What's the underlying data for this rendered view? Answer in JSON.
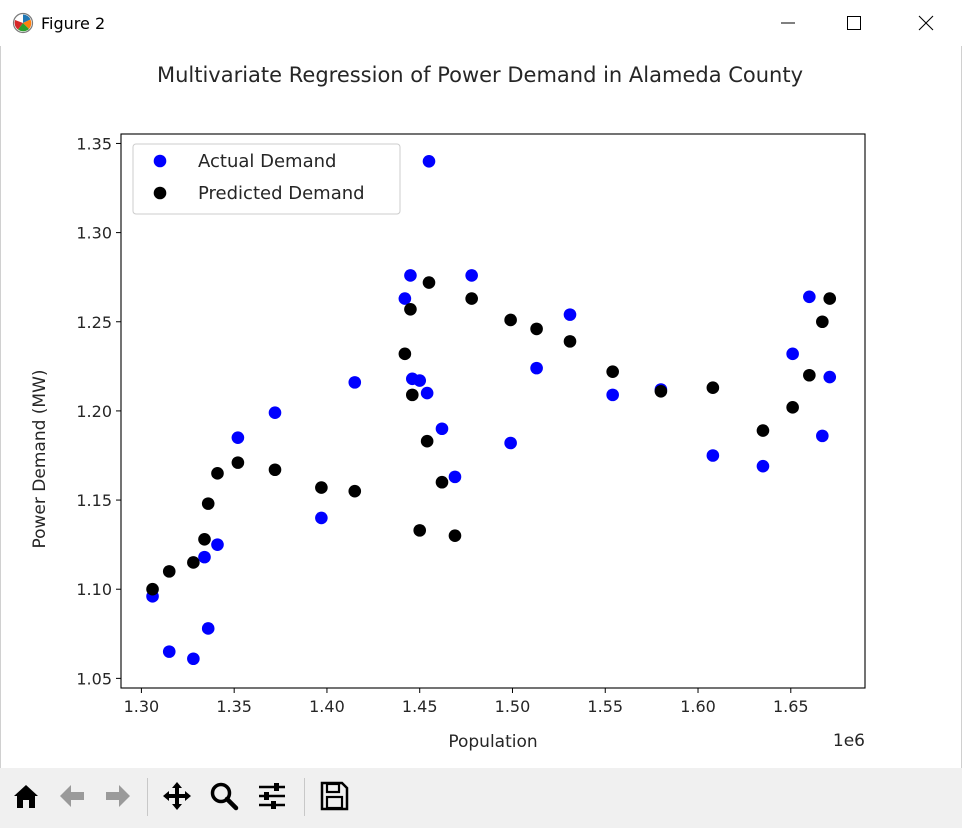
{
  "window": {
    "title": "Figure 2",
    "icons": {
      "app": "matplotlib-icon",
      "minimize": "minimize-icon",
      "maximize": "maximize-icon",
      "close": "close-icon"
    }
  },
  "toolbar": {
    "buttons": [
      {
        "name": "home-button",
        "icon": "home-icon"
      },
      {
        "name": "back-button",
        "icon": "arrow-left-icon"
      },
      {
        "name": "forward-button",
        "icon": "arrow-right-icon"
      },
      {
        "name": "pan-button",
        "icon": "move-icon"
      },
      {
        "name": "zoom-button",
        "icon": "zoom-icon"
      },
      {
        "name": "configure-subplots-button",
        "icon": "sliders-icon"
      },
      {
        "name": "save-button",
        "icon": "save-icon"
      }
    ]
  },
  "chart_data": {
    "type": "scatter",
    "title": "Multivariate Regression of Power Demand in Alameda County",
    "xlabel": "Population",
    "ylabel": "Power Demand (MW)",
    "x_offset_label": "1e6",
    "xlim": [
      1.289,
      1.69
    ],
    "ylim": [
      1.0446,
      1.3553
    ],
    "xticks": [
      "1.30",
      "1.35",
      "1.40",
      "1.45",
      "1.50",
      "1.55",
      "1.60",
      "1.65"
    ],
    "xtick_values": [
      1.3,
      1.35,
      1.4,
      1.45,
      1.5,
      1.55,
      1.6,
      1.65
    ],
    "yticks": [
      "1.05",
      "1.10",
      "1.15",
      "1.20",
      "1.25",
      "1.30",
      "1.35"
    ],
    "ytick_values": [
      1.05,
      1.1,
      1.15,
      1.2,
      1.25,
      1.3,
      1.35
    ],
    "grid": false,
    "legend_position": "upper left",
    "colors": {
      "actual": "#0000ff",
      "predicted": "#000000"
    },
    "series": [
      {
        "name": "Actual Demand",
        "color": "#0000ff",
        "points": [
          [
            1.306,
            1.096
          ],
          [
            1.315,
            1.065
          ],
          [
            1.328,
            1.061
          ],
          [
            1.334,
            1.118
          ],
          [
            1.336,
            1.078
          ],
          [
            1.341,
            1.125
          ],
          [
            1.352,
            1.185
          ],
          [
            1.372,
            1.199
          ],
          [
            1.397,
            1.14
          ],
          [
            1.415,
            1.216
          ],
          [
            1.442,
            1.263
          ],
          [
            1.445,
            1.276
          ],
          [
            1.446,
            1.218
          ],
          [
            1.45,
            1.217
          ],
          [
            1.454,
            1.21
          ],
          [
            1.455,
            1.34
          ],
          [
            1.462,
            1.19
          ],
          [
            1.469,
            1.163
          ],
          [
            1.478,
            1.276
          ],
          [
            1.499,
            1.182
          ],
          [
            1.513,
            1.224
          ],
          [
            1.531,
            1.254
          ],
          [
            1.554,
            1.209
          ],
          [
            1.58,
            1.212
          ],
          [
            1.608,
            1.175
          ],
          [
            1.635,
            1.169
          ],
          [
            1.651,
            1.232
          ],
          [
            1.66,
            1.264
          ],
          [
            1.667,
            1.186
          ],
          [
            1.671,
            1.219
          ]
        ]
      },
      {
        "name": "Predicted Demand",
        "color": "#000000",
        "points": [
          [
            1.306,
            1.1
          ],
          [
            1.315,
            1.11
          ],
          [
            1.328,
            1.115
          ],
          [
            1.334,
            1.128
          ],
          [
            1.336,
            1.148
          ],
          [
            1.341,
            1.165
          ],
          [
            1.352,
            1.171
          ],
          [
            1.372,
            1.167
          ],
          [
            1.397,
            1.157
          ],
          [
            1.415,
            1.155
          ],
          [
            1.442,
            1.232
          ],
          [
            1.445,
            1.257
          ],
          [
            1.446,
            1.209
          ],
          [
            1.45,
            1.133
          ],
          [
            1.454,
            1.183
          ],
          [
            1.455,
            1.272
          ],
          [
            1.462,
            1.16
          ],
          [
            1.469,
            1.13
          ],
          [
            1.478,
            1.263
          ],
          [
            1.499,
            1.251
          ],
          [
            1.513,
            1.246
          ],
          [
            1.531,
            1.239
          ],
          [
            1.554,
            1.222
          ],
          [
            1.58,
            1.211
          ],
          [
            1.608,
            1.213
          ],
          [
            1.635,
            1.189
          ],
          [
            1.651,
            1.202
          ],
          [
            1.66,
            1.22
          ],
          [
            1.667,
            1.25
          ],
          [
            1.671,
            1.263
          ]
        ]
      }
    ]
  }
}
